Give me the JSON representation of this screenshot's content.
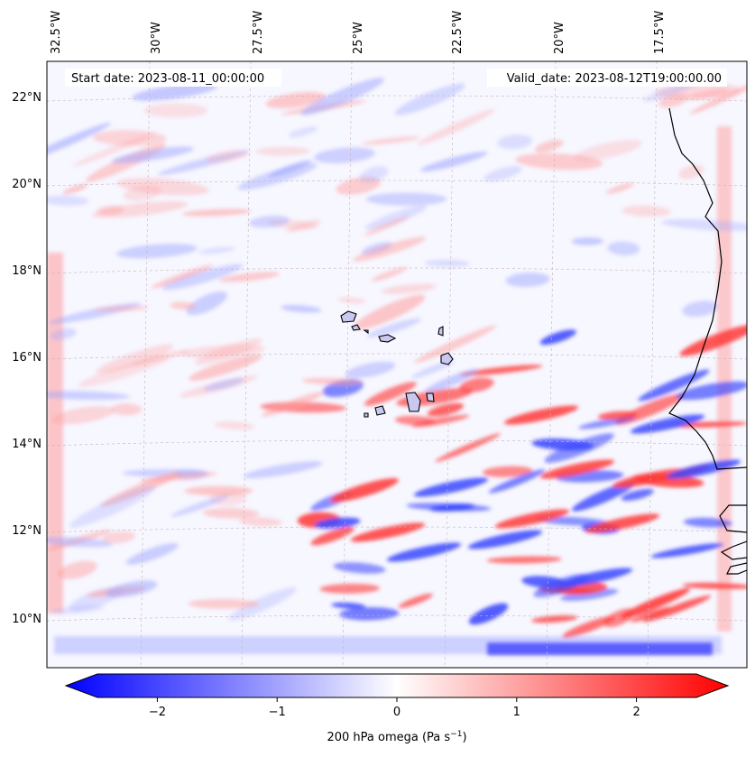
{
  "map": {
    "start_date": "Start date: 2023-08-11_00:00:00",
    "valid_date": "Valid_date: 2023-08-12T19:00:00.00",
    "lon_labels": [
      "32.5°W",
      "30°W",
      "27.5°W",
      "25°W",
      "22.5°W",
      "20°W",
      "17.5°W"
    ],
    "lat_labels": [
      "22°N",
      "20°N",
      "18°N",
      "16°N",
      "14°N",
      "12°N",
      "10°N"
    ],
    "field": "200 hPa omega",
    "gridlines": true
  },
  "colorbar": {
    "label": "200 hPa omega (Pa s",
    "label_sup": "−1",
    "label_end": ")",
    "ticks": [
      "−2",
      "−1",
      "0",
      "1",
      "2"
    ],
    "range": [
      -2.5,
      2.5
    ],
    "colormap": "bwr",
    "colors": {
      "min": "#0000ff",
      "mid": "#ffffff",
      "max": "#ff0000"
    }
  },
  "colors": {
    "coastline": "#000000",
    "island_fill": "#c8c8f0",
    "gridline": "#c8b4b4"
  }
}
